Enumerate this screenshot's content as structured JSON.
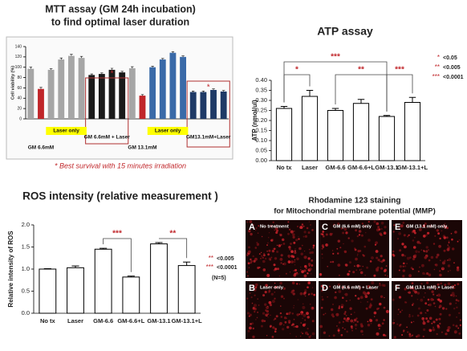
{
  "chart_data": [
    {
      "type": "bar",
      "title": "MTT assay (GM 24h incubation)",
      "subtitle": "to find optimal laser duration",
      "y_label": "Cell viability (%)",
      "categories": [
        null,
        null,
        null,
        null,
        null,
        null,
        null,
        null,
        null,
        null,
        null,
        null,
        null,
        null,
        null,
        null,
        null,
        null,
        null,
        null
      ],
      "values": [
        97,
        58,
        95,
        115,
        122,
        118,
        85,
        87,
        95,
        90,
        98,
        45,
        100,
        115,
        128,
        120,
        52,
        52,
        56,
        53
      ],
      "errors": [
        3,
        3,
        2,
        3,
        3,
        3,
        2,
        2,
        3,
        2,
        3,
        2,
        2,
        2,
        2,
        2,
        2,
        2,
        2,
        2
      ],
      "colors": [
        "#a6a6a6",
        "#c0262a",
        "#a6a6a6",
        "#a6a6a6",
        "#a6a6a6",
        "#a6a6a6",
        "#1a1a1a",
        "#1a1a1a",
        "#1a1a1a",
        "#1a1a1a",
        "#a6a6a6",
        "#c0262a",
        "#3a6aa8",
        "#3a6aa8",
        "#3a6aa8",
        "#3a6aa8",
        "#1f3a66",
        "#1f3a66",
        "#1f3a66",
        "#1f3a66"
      ],
      "ylim": [
        0,
        140
      ],
      "yticks": [
        0,
        20,
        40,
        60,
        80,
        100,
        120,
        140
      ],
      "groups": [
        "GM 6.6mM",
        "Laser only",
        "GM 6.6mM + Laser",
        "GM 13.1mM",
        "Laser only",
        "GM13.1mM+Laser"
      ],
      "annotations": [
        "*",
        "*"
      ],
      "note": "* Best survival with 15 minutes irradiation"
    },
    {
      "type": "bar",
      "title": "ATP assay",
      "y_label": "ATP (nmol/ul)",
      "categories": [
        "No tx",
        "Laser",
        "GM-6.6",
        "GM-6.6+L",
        "GM-13.1",
        "GM-13.1+L"
      ],
      "values": [
        0.26,
        0.32,
        0.25,
        0.285,
        0.22,
        0.29
      ],
      "errors": [
        0.01,
        0.03,
        0.01,
        0.02,
        0.005,
        0.025
      ],
      "color": "#ffffff",
      "edge_color": "#000000",
      "ylim": [
        0,
        0.4
      ],
      "yticks": [
        {
          "value": 0,
          "label": "0.00"
        },
        {
          "value": 0.05,
          "label": "0.05"
        },
        {
          "value": 0.1,
          "label": "0.10"
        },
        {
          "value": 0.15,
          "label": "0.15"
        },
        {
          "value": 0.2,
          "label": "0.20"
        },
        {
          "value": 0.25,
          "label": "0.25"
        },
        {
          "value": 0.3,
          "label": "0.30"
        },
        {
          "value": 0.35,
          "label": "0.35"
        },
        {
          "value": 0.4,
          "label": "0.40"
        }
      ],
      "significance": [
        "***",
        "*",
        "**",
        "***"
      ],
      "p_legend": [
        {
          "stars": "*",
          "text": "<0.05"
        },
        {
          "stars": "**",
          "text": "<0.005"
        },
        {
          "stars": "***",
          "text": "<0.0001"
        }
      ]
    },
    {
      "type": "bar",
      "title": "ROS intensity (relative measurement )",
      "y_label": "Relative intensity of ROS",
      "categories": [
        "No tx",
        "Laser",
        "GM-6.6",
        "GM-6.6+L",
        "GM-13.1",
        "GM-13.1+L"
      ],
      "values": [
        1.0,
        1.03,
        1.45,
        0.82,
        1.57,
        1.08
      ],
      "errors": [
        0.01,
        0.04,
        0.02,
        0.02,
        0.03,
        0.08
      ],
      "color": "#ffffff",
      "edge_color": "#000000",
      "ylim": [
        0,
        2
      ],
      "yticks": [
        {
          "value": 0,
          "label": "0.0"
        },
        {
          "value": 0.5,
          "label": "0.5"
        },
        {
          "value": 1,
          "label": "1.0"
        },
        {
          "value": 1.5,
          "label": "1.5"
        },
        {
          "value": 2,
          "label": "2.0"
        }
      ],
      "significance": [
        "***",
        "**"
      ],
      "p_legend": [
        {
          "stars": "**",
          "text": "<0.005"
        },
        {
          "stars": "***",
          "text": "<0.0001"
        }
      ],
      "n_note": "(N=5)"
    }
  ],
  "micrographs": {
    "title": "Rhodamine 123 staining",
    "subtitle": "for Mitochondrial membrane potential (MMP)",
    "panels": [
      {
        "letter": "A",
        "caption": "No treatment"
      },
      {
        "letter": "C",
        "caption": "GM (6.6 mM) only"
      },
      {
        "letter": "E",
        "caption": "GM (13.1 mM) only"
      },
      {
        "letter": "B",
        "caption": "Laser only"
      },
      {
        "letter": "D",
        "caption": "GM (6.6 mM) + Laser"
      },
      {
        "letter": "F",
        "caption": "GM (13.1 mM) + Laser"
      }
    ]
  }
}
